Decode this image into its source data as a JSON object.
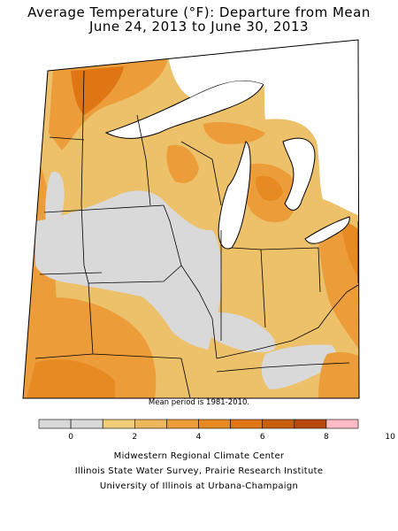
{
  "title_line1": "Average Temperature (°F): Departure from Mean",
  "title_line2": "June 24, 2013 to June 30, 2013",
  "note": "Mean period is 1981-2010.",
  "legend": {
    "colors": [
      "#d9d9d9",
      "#d9d9d9",
      "#f1cd78",
      "#edb85c",
      "#ec9d3a",
      "#e88a22",
      "#e07514",
      "#c85e0a",
      "#b84a06",
      "#ffbcc6"
    ],
    "labels": [
      "0",
      "2",
      "4",
      "6",
      "8",
      "10"
    ]
  },
  "credits": {
    "line1": "Midwestern Regional Climate Center",
    "line2": "Illinois State Water Survey, Prairie Research Institute",
    "line3": "University of Illinois at Urbana-Champaign"
  }
}
